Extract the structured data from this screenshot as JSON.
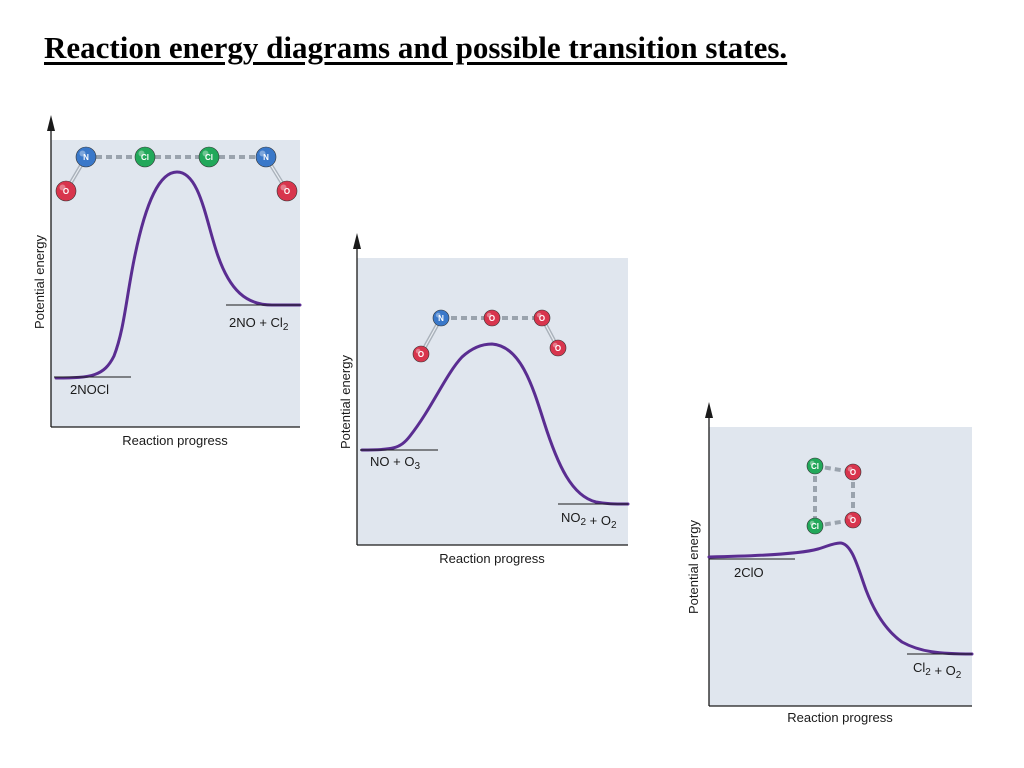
{
  "title": "Reaction energy diagrams and possible transition states.",
  "colors": {
    "curve": "#5a2d91",
    "panel": "#e0e6ee",
    "nitrogen": "#3a78c9",
    "chlorine": "#22a85a",
    "oxygen": "#d8354d"
  },
  "chart_data": [
    {
      "type": "line",
      "title": "",
      "xlabel": "Reaction progress",
      "ylabel": "Potential energy",
      "reactants": {
        "label": "2NOCl",
        "parts": [
          [
            "2NOCl",
            false
          ]
        ]
      },
      "products": {
        "label": "2NO + Cl2",
        "parts": [
          [
            "2NO + Cl",
            false
          ],
          [
            "2",
            true
          ]
        ]
      },
      "profile": "endothermic",
      "transition_state": {
        "atoms": [
          {
            "el": "N",
            "label": "N"
          },
          {
            "el": "Cl",
            "label": "Cl"
          },
          {
            "el": "Cl",
            "label": "Cl"
          },
          {
            "el": "N",
            "label": "N"
          },
          {
            "el": "O",
            "label": "O"
          },
          {
            "el": "O",
            "label": "O"
          }
        ]
      }
    },
    {
      "type": "line",
      "title": "",
      "xlabel": "Reaction progress",
      "ylabel": "Potential energy",
      "reactants": {
        "label": "NO + O3",
        "parts": [
          [
            "NO + O",
            false
          ],
          [
            "3",
            true
          ]
        ]
      },
      "products": {
        "label": "NO2 + O2",
        "parts": [
          [
            "NO",
            false
          ],
          [
            "2",
            true
          ],
          [
            " + O",
            false
          ],
          [
            "2",
            true
          ]
        ]
      },
      "profile": "exothermic",
      "transition_state": {
        "atoms": [
          {
            "el": "N",
            "label": "N"
          },
          {
            "el": "O",
            "label": "O"
          },
          {
            "el": "O",
            "label": "O"
          },
          {
            "el": "O",
            "label": "O"
          },
          {
            "el": "O",
            "label": "O"
          }
        ]
      }
    },
    {
      "type": "line",
      "title": "",
      "xlabel": "Reaction progress",
      "ylabel": "Potential energy",
      "reactants": {
        "label": "2ClO",
        "parts": [
          [
            "2ClO",
            false
          ]
        ]
      },
      "products": {
        "label": "Cl2 + O2",
        "parts": [
          [
            "Cl",
            false
          ],
          [
            "2",
            true
          ],
          [
            " + O",
            false
          ],
          [
            "2",
            true
          ]
        ]
      },
      "profile": "exothermic",
      "transition_state": {
        "atoms": [
          {
            "el": "Cl",
            "label": "Cl"
          },
          {
            "el": "O",
            "label": "O"
          },
          {
            "el": "Cl",
            "label": "Cl"
          },
          {
            "el": "O",
            "label": "O"
          }
        ]
      }
    }
  ]
}
